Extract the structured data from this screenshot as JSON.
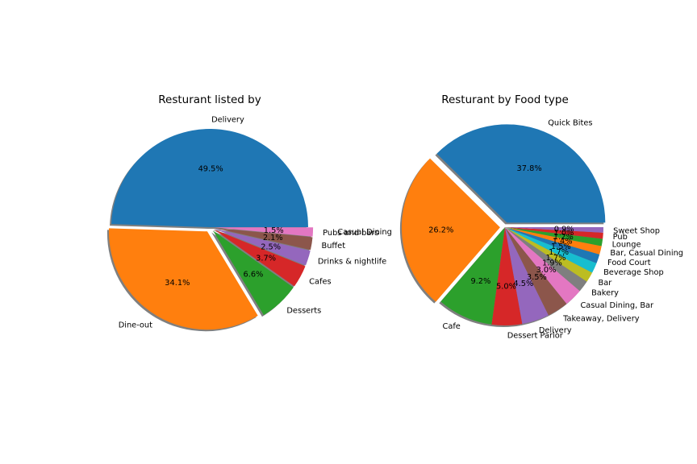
{
  "chart_data": [
    {
      "type": "pie",
      "title": "Resturant listed by",
      "categories": [
        "Delivery",
        "Dine-out",
        "Desserts",
        "Cafes",
        "Drinks & nightlife",
        "Buffet",
        "Pubs and bars"
      ],
      "values": [
        49.5,
        34.1,
        6.6,
        3.7,
        2.5,
        2.1,
        1.5
      ],
      "value_labels": [
        "49.5%",
        "34.1%",
        "6.6%",
        "3.7%",
        "2.5%",
        "2.1%",
        "1.5%"
      ],
      "explode": [
        0.0,
        0.05,
        0.05,
        0.05,
        0.05,
        0.05,
        0.05
      ],
      "shadow": true,
      "colors": [
        "#1f77b4",
        "#ff7f0e",
        "#2ca02c",
        "#d62728",
        "#9467bd",
        "#8c564b",
        "#e377c2"
      ]
    },
    {
      "type": "pie",
      "title": "Resturant by Food type",
      "categories": [
        "Quick Bites",
        "Casual Dining",
        "Cafe",
        "Dessert Parlor",
        "Delivery",
        "Takeaway, Delivery",
        "Casual Dining, Bar",
        "Bakery",
        "Bar",
        "Beverage Shop",
        "Food Court",
        "Bar, Casual Dining",
        "Lounge",
        "Pub",
        "Sweet Shop"
      ],
      "values": [
        37.8,
        26.2,
        9.2,
        5.0,
        4.5,
        3.5,
        3.0,
        1.9,
        1.7,
        1.7,
        1.5,
        1.4,
        1.2,
        1.0,
        0.9
      ],
      "value_labels": [
        "37.8%",
        "26.2%",
        "9.2%",
        "5.0%",
        "4.5%",
        "3.5%",
        "3.0%",
        "1.9%",
        "1.7%",
        "1.7%",
        "1.5%",
        "1.4%",
        "1.2%",
        "1.0%",
        "0.9%"
      ],
      "explode": [
        0.05,
        0.05,
        0.0,
        0.0,
        0.0,
        0.0,
        0.0,
        0.0,
        0.0,
        0.0,
        0.0,
        0.0,
        0.0,
        0.0,
        0.0
      ],
      "shadow": true,
      "colors": [
        "#1f77b4",
        "#ff7f0e",
        "#2ca02c",
        "#d62728",
        "#9467bd",
        "#8c564b",
        "#e377c2",
        "#7f7f7f",
        "#bcbd22",
        "#17becf",
        "#1f77b4",
        "#ff7f0e",
        "#2ca02c",
        "#d62728",
        "#9467bd"
      ]
    }
  ]
}
